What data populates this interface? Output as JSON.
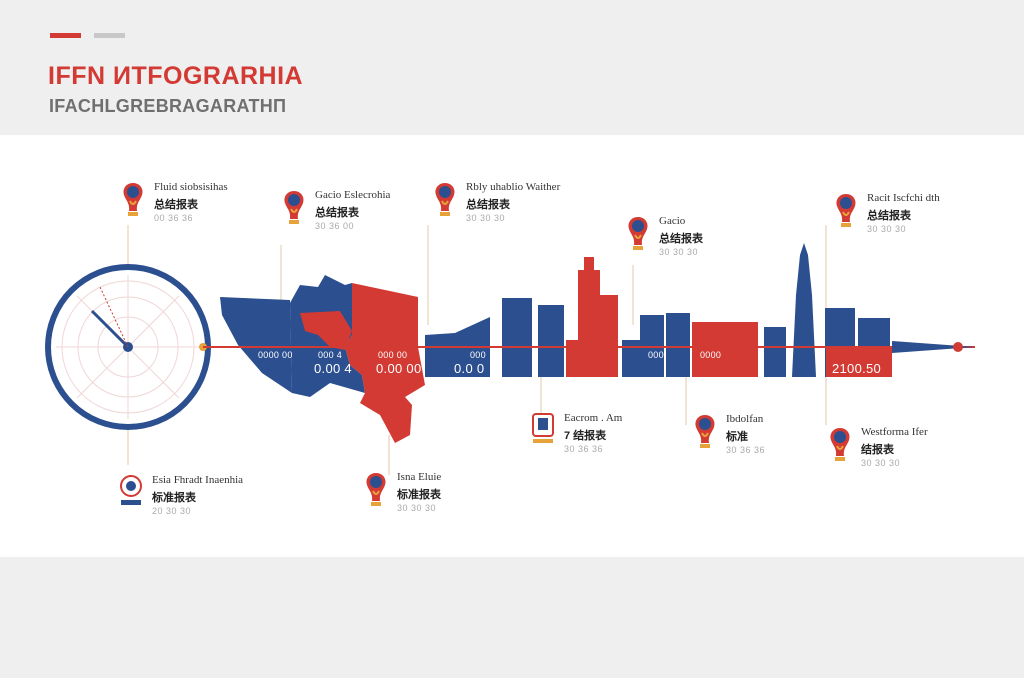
{
  "header": {
    "title": "IFFN ИTFOGRARHIA",
    "subtitle": "IFACHLGREBRAGARATHΠ",
    "colors": {
      "red": "#d23a33",
      "blue": "#2b4f8f",
      "grey": "#c8c8c8"
    }
  },
  "callouts": [
    {
      "icon": "trophy-emblem-icon",
      "line1": "Fluid siobsisihas",
      "line2": "总结报表",
      "line3": "00 36 36"
    },
    {
      "icon": "trophy-emblem-icon",
      "line1": "Gacio Eslecrohia",
      "line2": "总结报表",
      "line3": "30 36 00"
    },
    {
      "icon": "trophy-emblem-icon",
      "line1": "Rbly uhablio Waither",
      "line2": "总结报表",
      "line3": "30 30 30"
    },
    {
      "icon": "trophy-emblem-icon",
      "line1": "Gacio",
      "line2": "总结报表",
      "line3": "30 30 30"
    },
    {
      "icon": "trophy-emblem-icon",
      "line1": "Racit Iscfchi dth",
      "line2": "总结报表",
      "line3": "30 30 30"
    },
    {
      "icon": "round-crest-icon",
      "line1": "Esia Fhradt Inaenhia",
      "line2": "标准报表",
      "line3": "20 30 30"
    },
    {
      "icon": "trophy-emblem-icon",
      "line1": "Isna Eluie",
      "line2": "标准报表",
      "line3": "30 30 30"
    },
    {
      "icon": "square-crest-icon",
      "line1": "Eacrom . Am",
      "line2": "7 结报表",
      "line3": "30 36 36"
    },
    {
      "icon": "trophy-emblem-icon",
      "line1": "Ibdolfan",
      "line2": "标准",
      "line3": "30 36 36"
    },
    {
      "icon": "trophy-emblem-icon",
      "line1": "Westforma Ifer",
      "line2": "结报表",
      "line3": "30 30 30"
    }
  ],
  "timeline_labels": {
    "a": "0000 00",
    "b": "000 4",
    "c": "000 00",
    "d": "000",
    "e": "000",
    "f": "0000",
    "big1": "0.00 4",
    "big2": "0.00 00",
    "big3": "0.0 0",
    "final": "2100.50"
  }
}
